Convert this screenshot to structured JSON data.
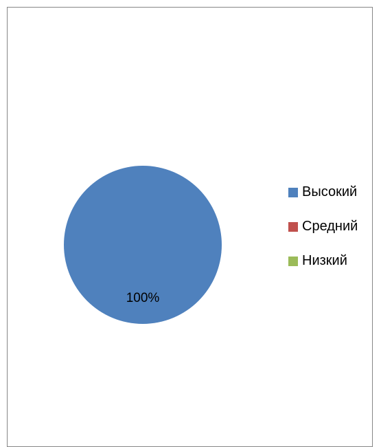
{
  "chart_data": {
    "type": "pie",
    "categories": [
      "Высокий",
      "Средний",
      "Низкий"
    ],
    "values": [
      100,
      0,
      0
    ],
    "data_labels": [
      "100%",
      "",
      ""
    ],
    "colors": [
      "#4F81BD",
      "#C0504D",
      "#9BBB59"
    ],
    "legend_position": "right",
    "title": ""
  },
  "legend": {
    "items": [
      {
        "label": "Высокий",
        "color": "#4F81BD"
      },
      {
        "label": "Средний",
        "color": "#C0504D"
      },
      {
        "label": "Низкий",
        "color": "#9BBB59"
      }
    ]
  }
}
